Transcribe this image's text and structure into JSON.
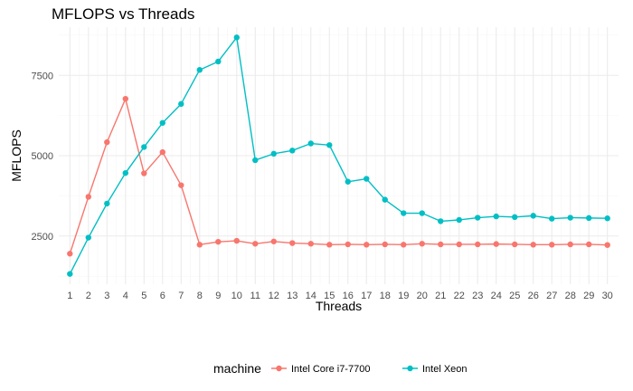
{
  "chart_data": {
    "type": "line",
    "title": "MFLOPS vs Threads",
    "xlabel": "Threads",
    "ylabel": "MFLOPS",
    "x": [
      1,
      2,
      3,
      4,
      5,
      6,
      7,
      8,
      9,
      10,
      11,
      12,
      13,
      14,
      15,
      16,
      17,
      18,
      19,
      20,
      21,
      22,
      23,
      24,
      25,
      26,
      27,
      28,
      29,
      30
    ],
    "x_tick_labels": [
      "1",
      "2",
      "3",
      "4",
      "5",
      "6",
      "7",
      "8",
      "9",
      "10",
      "11",
      "12",
      "13",
      "14",
      "15",
      "16",
      "17",
      "18",
      "19",
      "20",
      "21",
      "22",
      "23",
      "24",
      "25",
      "26",
      "27",
      "28",
      "29",
      "30"
    ],
    "xlim": [
      0.4,
      30.6
    ],
    "ylim": [
      1000,
      9000
    ],
    "y_ticks": [
      2500,
      5000,
      7500
    ],
    "y_tick_labels": [
      "2500",
      "5000",
      "7500"
    ],
    "grid": true,
    "legend": {
      "title": "machine",
      "position": "bottom"
    },
    "series": [
      {
        "name": "Intel Core i7-7700",
        "color": "#F8766D",
        "values": [
          1950,
          3720,
          5420,
          6770,
          4450,
          5110,
          4080,
          2230,
          2320,
          2350,
          2260,
          2330,
          2280,
          2260,
          2230,
          2240,
          2230,
          2240,
          2230,
          2260,
          2240,
          2240,
          2240,
          2250,
          2240,
          2230,
          2230,
          2240,
          2240,
          2220
        ]
      },
      {
        "name": "Intel Xeon",
        "color": "#00BFC4",
        "values": [
          1320,
          2450,
          3510,
          4460,
          5270,
          6020,
          6610,
          7670,
          7930,
          8680,
          4860,
          5060,
          5160,
          5380,
          5330,
          4190,
          4280,
          3630,
          3210,
          3210,
          2960,
          3000,
          3070,
          3110,
          3090,
          3130,
          3040,
          3070,
          3060,
          3050
        ]
      }
    ]
  }
}
